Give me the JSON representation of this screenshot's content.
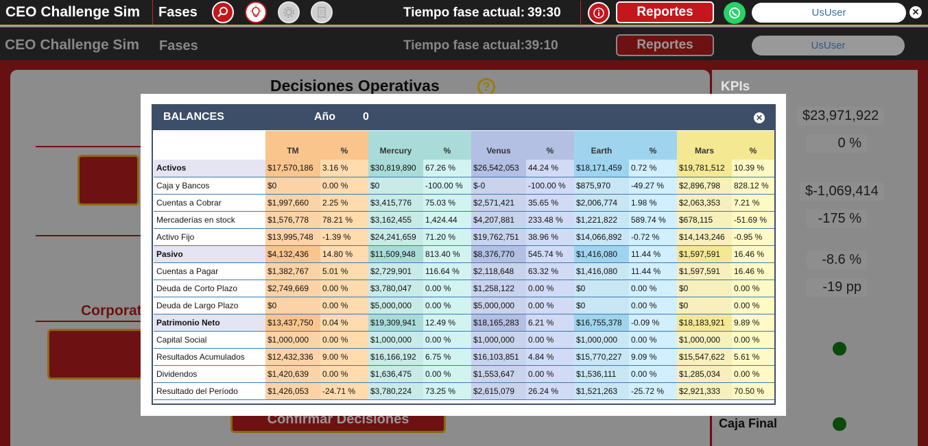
{
  "app": {
    "title": "CEO Challenge Sim",
    "fases_label": "Fases",
    "timer_label": "Tiempo fase actual:",
    "timer_value": "39:30",
    "reportes_label": "Reportes",
    "user_label": "UsUser"
  },
  "background": {
    "title": "CEO Challenge Sim",
    "fases_label": "Fases",
    "timer_label": "Tiempo fase actual:",
    "timer_value": "39:10",
    "reportes_label": "Reportes",
    "user_label": "UsUser",
    "card_title": "Decisiones Operativas",
    "help_icon": "?",
    "kpis_title": "KPIs",
    "kpi_values": [
      "$23,971,922",
      "0 %",
      "$-1,069,414",
      "-175 %",
      "-8.6 %",
      "-19 pp"
    ],
    "corporate_label": "Corporat",
    "confirm_label": "Confirmar Decisiones",
    "caja_final_label": "Caja Final"
  },
  "icons": {
    "phase1": "magnifier-icon",
    "phase2": "lightbulb-icon",
    "phase3": "gear-icon",
    "phase4": "document-icon",
    "info": "info-icon",
    "whatsapp": "whatsapp-icon",
    "close": "close-icon"
  },
  "colors": {
    "accent_red": "#c4161c",
    "header_dark": "#1e1e1e",
    "panel_header": "#3c4e68",
    "tm": "#fbd3a6",
    "tm_head": "#f9c58c",
    "mercury": "#c9ebe8",
    "mercury_head": "#a9dcd8",
    "venus": "#c9d3ec",
    "venus_head": "#b3bfe3",
    "earth": "#c9e6f5",
    "earth_head": "#9fd4ef",
    "mars": "#f7f0bd",
    "mars_head": "#f5e893"
  },
  "modal": {
    "title": "BALANCES",
    "year_label": "Año",
    "year_value": "0",
    "columns": [
      {
        "name": "TM",
        "pct": "%"
      },
      {
        "name": "Mercury",
        "pct": "%"
      },
      {
        "name": "Venus",
        "pct": "%"
      },
      {
        "name": "Earth",
        "pct": "%"
      },
      {
        "name": "Mars",
        "pct": "%"
      }
    ],
    "rows": [
      {
        "label": "Activos",
        "section": true,
        "cells": [
          [
            "$17,570,186",
            "3.16 %"
          ],
          [
            "$30,819,890",
            "67.26 %"
          ],
          [
            "$26,542,053",
            "44.24 %"
          ],
          [
            "$18,171,459",
            "0.72 %"
          ],
          [
            "$19,781,512",
            "10.39 %"
          ]
        ]
      },
      {
        "label": "Caja y Bancos",
        "section": false,
        "cells": [
          [
            "$0",
            "0.00 %"
          ],
          [
            "$0",
            "-100.00 %"
          ],
          [
            "$-0",
            "-100.00 %"
          ],
          [
            "$875,970",
            "-49.27 %"
          ],
          [
            "$2,896,798",
            "828.12 %"
          ]
        ]
      },
      {
        "label": "Cuentas a Cobrar",
        "section": false,
        "cells": [
          [
            "$1,997,660",
            "2.25 %"
          ],
          [
            "$3,415,776",
            "75.03 %"
          ],
          [
            "$2,571,421",
            "35.65 %"
          ],
          [
            "$2,006,774",
            "1.98 %"
          ],
          [
            "$2,063,353",
            "7.21 %"
          ]
        ]
      },
      {
        "label": "Mercaderías en stock",
        "section": false,
        "cells": [
          [
            "$1,576,778",
            "78.21 %"
          ],
          [
            "$3,162,455",
            "1,424.44"
          ],
          [
            "$4,207,881",
            "233.48 %"
          ],
          [
            "$1,221,822",
            "589.74 %"
          ],
          [
            "$678,115",
            "-51.69 %"
          ]
        ]
      },
      {
        "label": "Activo Fijo",
        "section": false,
        "cells": [
          [
            "$13,995,748",
            "-1.39 %"
          ],
          [
            "$24,241,659",
            "71.20 %"
          ],
          [
            "$19,762,751",
            "38.96 %"
          ],
          [
            "$14,066,892",
            "-0.72 %"
          ],
          [
            "$14,143,246",
            "-0.95 %"
          ]
        ]
      },
      {
        "label": "Pasivo",
        "section": true,
        "cells": [
          [
            "$4,132,436",
            "14.80 %"
          ],
          [
            "$11,509,948",
            "813.40 %"
          ],
          [
            "$8,376,770",
            "545.74 %"
          ],
          [
            "$1,416,080",
            "11.44 %"
          ],
          [
            "$1,597,591",
            "16.46 %"
          ]
        ]
      },
      {
        "label": "Cuentas a Pagar",
        "section": false,
        "cells": [
          [
            "$1,382,767",
            "5.01 %"
          ],
          [
            "$2,729,901",
            "116.64 %"
          ],
          [
            "$2,118,648",
            "63.32 %"
          ],
          [
            "$1,416,080",
            "11.44 %"
          ],
          [
            "$1,597,591",
            "16.46 %"
          ]
        ]
      },
      {
        "label": "Deuda de Corto Plazo",
        "section": false,
        "cells": [
          [
            "$2,749,669",
            "0.00 %"
          ],
          [
            "$3,780,047",
            "0.00 %"
          ],
          [
            "$1,258,122",
            "0.00 %"
          ],
          [
            "$0",
            "0.00 %"
          ],
          [
            "$0",
            "0.00 %"
          ]
        ]
      },
      {
        "label": "Deuda de Largo Plazo",
        "section": false,
        "cells": [
          [
            "$0",
            "0.00 %"
          ],
          [
            "$5,000,000",
            "0.00 %"
          ],
          [
            "$5,000,000",
            "0.00 %"
          ],
          [
            "$0",
            "0.00 %"
          ],
          [
            "$0",
            "0.00 %"
          ]
        ]
      },
      {
        "label": "Patrimonio Neto",
        "section": true,
        "cells": [
          [
            "$13,437,750",
            "0.04 %"
          ],
          [
            "$19,309,941",
            "12.49 %"
          ],
          [
            "$18,165,283",
            "6.21 %"
          ],
          [
            "$16,755,378",
            "-0.09 %"
          ],
          [
            "$18,183,921",
            "9.89 %"
          ]
        ]
      },
      {
        "label": "Capital Social",
        "section": false,
        "cells": [
          [
            "$1,000,000",
            "0.00 %"
          ],
          [
            "$1,000,000",
            "0.00 %"
          ],
          [
            "$1,000,000",
            "0.00 %"
          ],
          [
            "$1,000,000",
            "0.00 %"
          ],
          [
            "$1,000,000",
            "0.00 %"
          ]
        ]
      },
      {
        "label": "Resultados Acumulados",
        "section": false,
        "cells": [
          [
            "$12,432,336",
            "9.00 %"
          ],
          [
            "$16,166,192",
            "6.75 %"
          ],
          [
            "$16,103,851",
            "4.84 %"
          ],
          [
            "$15,770,227",
            "9.09 %"
          ],
          [
            "$15,547,622",
            "5.61 %"
          ]
        ]
      },
      {
        "label": "Dividendos",
        "section": false,
        "cells": [
          [
            "$1,420,639",
            "0.00 %"
          ],
          [
            "$1,636,475",
            "0.00 %"
          ],
          [
            "$1,553,647",
            "0.00 %"
          ],
          [
            "$1,536,111",
            "0.00 %"
          ],
          [
            "$1,285,034",
            "0.00 %"
          ]
        ]
      },
      {
        "label": "Resultado del Período",
        "section": false,
        "cells": [
          [
            "$1,426,053",
            "-24.71 %"
          ],
          [
            "$3,780,224",
            "73.25 %"
          ],
          [
            "$2,615,079",
            "26.24 %"
          ],
          [
            "$1,521,263",
            "-25.72 %"
          ],
          [
            "$2,921,333",
            "70.50 %"
          ]
        ]
      }
    ]
  }
}
